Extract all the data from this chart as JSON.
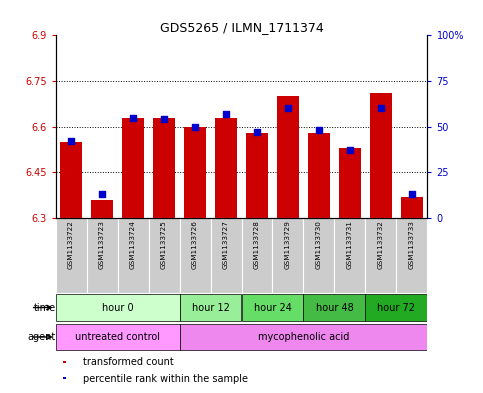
{
  "title": "GDS5265 / ILMN_1711374",
  "samples": [
    "GSM1133722",
    "GSM1133723",
    "GSM1133724",
    "GSM1133725",
    "GSM1133726",
    "GSM1133727",
    "GSM1133728",
    "GSM1133729",
    "GSM1133730",
    "GSM1133731",
    "GSM1133732",
    "GSM1133733"
  ],
  "red_values": [
    6.55,
    6.36,
    6.63,
    6.63,
    6.6,
    6.63,
    6.58,
    6.7,
    6.58,
    6.53,
    6.71,
    6.37
  ],
  "blue_percentiles": [
    42,
    13,
    55,
    54,
    50,
    57,
    47,
    60,
    48,
    37,
    60,
    13
  ],
  "ylim_left": [
    6.3,
    6.9
  ],
  "ylim_right": [
    0,
    100
  ],
  "yticks_left": [
    6.3,
    6.45,
    6.6,
    6.75,
    6.9
  ],
  "yticks_right": [
    0,
    25,
    50,
    75,
    100
  ],
  "ytick_labels_left": [
    "6.3",
    "6.45",
    "6.6",
    "6.75",
    "6.9"
  ],
  "ytick_labels_right": [
    "0",
    "25",
    "50",
    "75",
    "100%"
  ],
  "bar_bottom": 6.3,
  "red_color": "#cc0000",
  "blue_color": "#0000cc",
  "time_groups": [
    {
      "label": "hour 0",
      "start": 0,
      "end": 4,
      "color": "#ccffcc"
    },
    {
      "label": "hour 12",
      "start": 4,
      "end": 6,
      "color": "#99ee99"
    },
    {
      "label": "hour 24",
      "start": 6,
      "end": 8,
      "color": "#66dd66"
    },
    {
      "label": "hour 48",
      "start": 8,
      "end": 10,
      "color": "#44bb44"
    },
    {
      "label": "hour 72",
      "start": 10,
      "end": 12,
      "color": "#22aa22"
    }
  ],
  "agent_groups": [
    {
      "label": "untreated control",
      "start": 0,
      "end": 4,
      "color": "#ff99ff"
    },
    {
      "label": "mycophenolic acid",
      "start": 4,
      "end": 12,
      "color": "#ee88ee"
    }
  ],
  "legend_items": [
    {
      "label": "transformed count",
      "color": "#cc0000"
    },
    {
      "label": "percentile rank within the sample",
      "color": "#0000cc"
    }
  ],
  "axis_label_color_left": "#cc0000",
  "axis_label_color_right": "#0000cc",
  "bar_width": 0.7,
  "sample_bg_color": "#cccccc",
  "fig_bg": "#ffffff"
}
